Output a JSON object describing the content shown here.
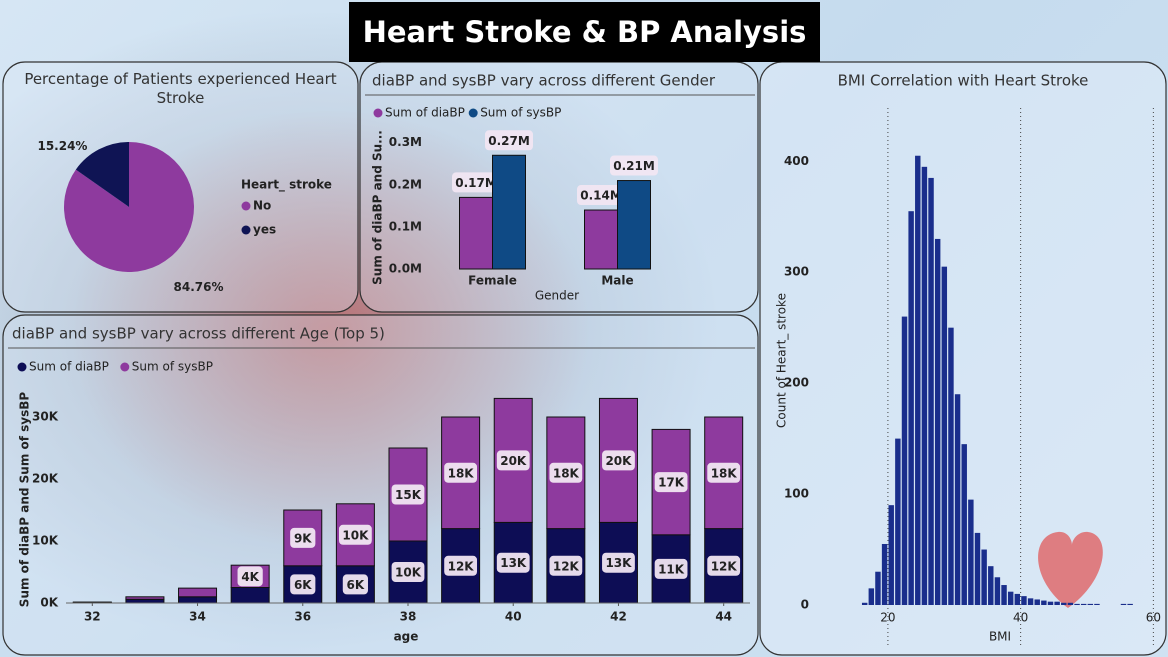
{
  "title": "Heart Stroke & BP Analysis",
  "chart_data": [
    {
      "type": "pie",
      "title": "Percentage of Patients experienced Heart Stroke",
      "legend_title": "Heart_ stroke",
      "categories": [
        "No",
        "yes"
      ],
      "values": [
        84.76,
        15.24
      ],
      "value_labels": [
        "84.76%",
        "15.24%"
      ],
      "colors": [
        "#8e3a9e",
        "#0f1454"
      ],
      "legend": "right"
    },
    {
      "type": "bar",
      "title": "diaBP and sysBP vary across different Gender",
      "x_label": "Gender",
      "y_label": "Sum of diaBP and Su...",
      "categories": [
        "Female",
        "Male"
      ],
      "series": [
        {
          "name": "Sum of diaBP",
          "color": "#8e3a9e",
          "values": [
            170000,
            140000
          ],
          "value_labels": [
            "0.17M",
            "0.14M"
          ]
        },
        {
          "name": "Sum of sysBP",
          "color": "#0f4a85",
          "values": [
            270000,
            210000
          ],
          "value_labels": [
            "0.27M",
            "0.21M"
          ]
        }
      ],
      "ylim": [
        0,
        330000
      ],
      "yticks": [
        {
          "value": 0,
          "label": "0.0M"
        },
        {
          "value": 100000,
          "label": "0.1M"
        },
        {
          "value": 200000,
          "label": "0.2M"
        },
        {
          "value": 300000,
          "label": "0.3M"
        }
      ],
      "grid": false,
      "legend": "top-left"
    },
    {
      "type": "stacked_bar",
      "title": "diaBP and sysBP vary across different Age (Top 5)",
      "x_label": "age",
      "y_label": "Sum of diaBP and Sum of sysBP",
      "x": [
        32,
        33,
        34,
        35,
        36,
        37,
        38,
        39,
        40,
        41,
        42,
        43,
        44
      ],
      "series": [
        {
          "name": "Sum of diaBP",
          "color": "#0d0d55",
          "values": [
            100,
            600,
            1000,
            2500,
            6000,
            6000,
            10000,
            12000,
            13000,
            12000,
            13000,
            11000,
            12000
          ],
          "value_labels": [
            null,
            null,
            null,
            null,
            "6K",
            "6K",
            "10K",
            "12K",
            "13K",
            "12K",
            "13K",
            "11K",
            "12K"
          ]
        },
        {
          "name": "Sum of sysBP",
          "color": "#8e3a9e",
          "values": [
            50,
            400,
            1400,
            3600,
            9000,
            10000,
            15000,
            18000,
            20000,
            18000,
            20000,
            17000,
            18000
          ],
          "value_labels": [
            null,
            null,
            null,
            "4K",
            "9K",
            "10K",
            "15K",
            "18K",
            "20K",
            "18K",
            "20K",
            "17K",
            "18K"
          ]
        }
      ],
      "xlim": [
        31.5,
        44.5
      ],
      "xticks": [
        32,
        34,
        36,
        38,
        40,
        42,
        44
      ],
      "ylim": [
        0,
        35000
      ],
      "yticks": [
        {
          "value": 0,
          "label": "0K"
        },
        {
          "value": 10000,
          "label": "10K"
        },
        {
          "value": 20000,
          "label": "20K"
        },
        {
          "value": 30000,
          "label": "30K"
        }
      ],
      "grid": false,
      "legend": "top-left"
    },
    {
      "type": "histogram",
      "title": "BMI Correlation with Heart Stroke",
      "x_label": "BMI",
      "y_label": "Count of Heart_ stroke",
      "bins": [
        16,
        17,
        18,
        19,
        20,
        21,
        22,
        23,
        24,
        25,
        26,
        27,
        28,
        29,
        30,
        31,
        32,
        33,
        34,
        35,
        36,
        37,
        38,
        39,
        40,
        41,
        42,
        43,
        44,
        45,
        46,
        47,
        48,
        49,
        50,
        51,
        52,
        53,
        54,
        55,
        56,
        57
      ],
      "values": [
        2,
        15,
        30,
        55,
        90,
        150,
        260,
        355,
        405,
        395,
        385,
        330,
        305,
        250,
        190,
        145,
        95,
        65,
        50,
        35,
        25,
        18,
        12,
        10,
        8,
        6,
        5,
        4,
        3,
        3,
        2,
        2,
        1,
        1,
        1,
        1,
        0,
        0,
        0,
        1,
        1
      ],
      "color": "#1a2e8c",
      "xlim": [
        6,
        61
      ],
      "xticks": [
        20,
        40,
        60
      ],
      "ylim": [
        0,
        430
      ],
      "yticks": [
        0,
        100,
        200,
        300,
        400
      ],
      "grid": true
    }
  ]
}
